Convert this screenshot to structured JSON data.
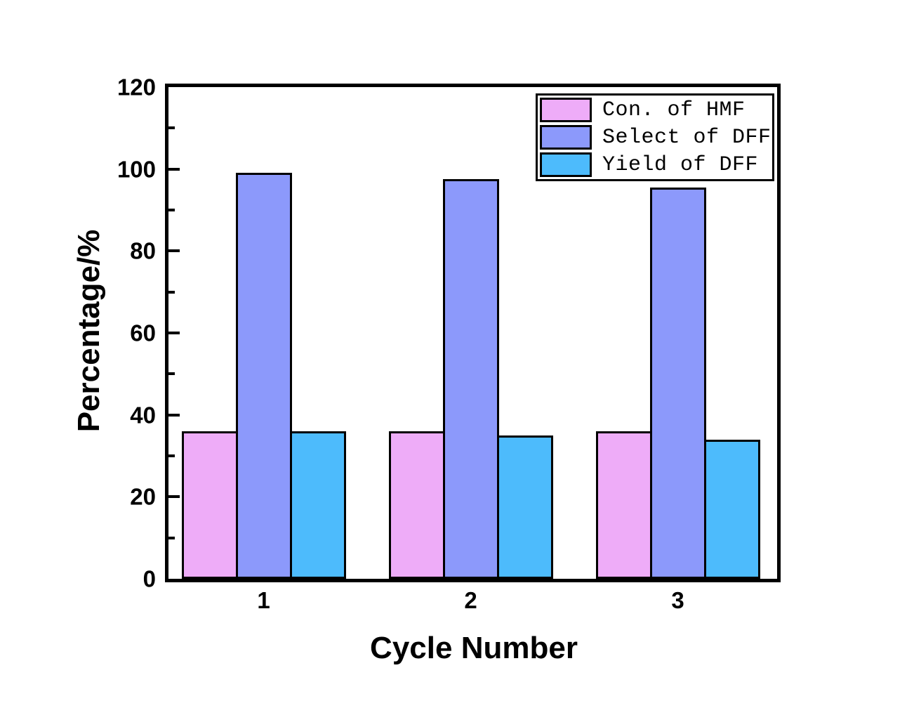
{
  "figure": {
    "background_color": "#ffffff",
    "axis_color": "#000000"
  },
  "chart_data": {
    "type": "bar",
    "title": "",
    "xlabel": "Cycle Number",
    "ylabel": "Percentage/%",
    "categories": [
      "1",
      "2",
      "3"
    ],
    "series": [
      {
        "name": "Con. of HMF",
        "color": "#EEACF8",
        "values": [
          36,
          36,
          36
        ]
      },
      {
        "name": "Select of DFF",
        "color": "#8C99FB",
        "values": [
          99,
          97.5,
          95.5
        ]
      },
      {
        "name": "Yield of DFF",
        "color": "#4DBBFC",
        "values": [
          36,
          35,
          34
        ]
      }
    ],
    "ylim": [
      0,
      120
    ],
    "yticks": [
      0,
      20,
      40,
      60,
      80,
      100,
      120
    ],
    "yticks_minor": [
      10,
      30,
      50,
      70,
      90,
      110
    ],
    "xticks": [
      "1",
      "2",
      "3"
    ],
    "grid": false,
    "legend_position": "top-right",
    "bar_edge_color": "#000000"
  }
}
